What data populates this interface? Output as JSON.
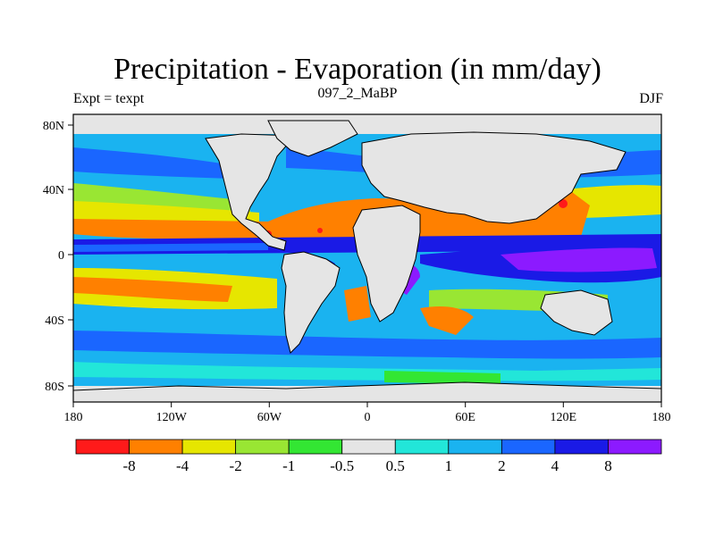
{
  "title": "Precipitation - Evaporation (in mm/day)",
  "subtitle": "097_2_MaBP",
  "left_label": "Expt = texpt",
  "right_label": "DJF",
  "colors": {
    "land_missing": "#e5e5e5",
    "frame": "#000000"
  },
  "axes": {
    "lat_ticks": [
      "80N",
      "40N",
      "0",
      "40S",
      "80S"
    ],
    "lon_ticks": [
      "180",
      "120W",
      "60W",
      "0",
      "60E",
      "120E",
      "180"
    ]
  },
  "colorbar": {
    "colors": [
      "#ff1a1a",
      "#ff8000",
      "#e6e600",
      "#99e633",
      "#33e633",
      "#e5e5e5",
      "#22e6d9",
      "#1ab3f0",
      "#1a66ff",
      "#1a1ae6",
      "#8c1aff"
    ],
    "labels": [
      "-8",
      "-4",
      "-2",
      "-1",
      "-0.5",
      "0.5",
      "1",
      "2",
      "4",
      "8"
    ]
  }
}
